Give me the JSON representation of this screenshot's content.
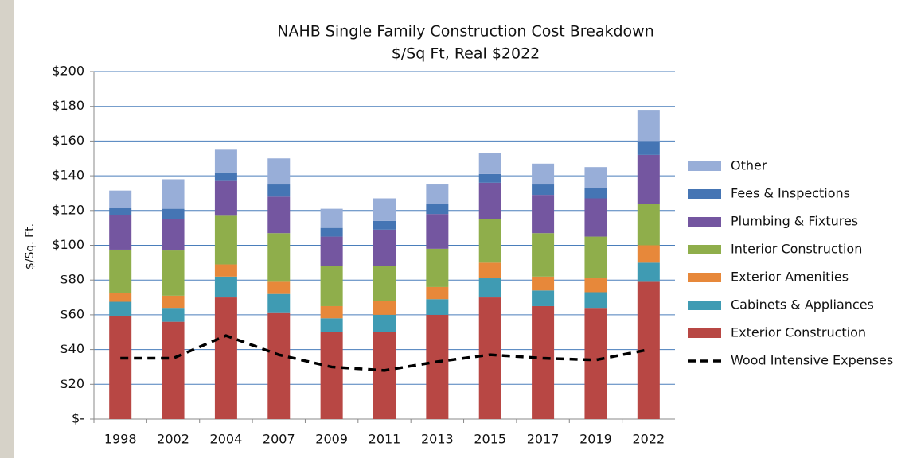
{
  "chart_data": {
    "type": "stacked_bar_line",
    "title": "NAHB Single Family Construction Cost Breakdown",
    "subtitle": "$/Sq Ft, Real $2022",
    "y_label": "$/Sq. Ft.",
    "categories": [
      "1998",
      "2002",
      "2004",
      "2007",
      "2009",
      "2011",
      "2013",
      "2015",
      "2017",
      "2019",
      "2022"
    ],
    "series": [
      {
        "name": "Exterior Construction",
        "color": "#b84744",
        "values": [
          59.5,
          56,
          70,
          61,
          50,
          50,
          60,
          70,
          65,
          64,
          79
        ]
      },
      {
        "name": "Cabinets & Appliances",
        "color": "#3f9bb3",
        "values": [
          8,
          8,
          12,
          11,
          8,
          10,
          9,
          11,
          9,
          9,
          11
        ]
      },
      {
        "name": "Exterior Amenities",
        "color": "#e7883a",
        "values": [
          5,
          7,
          7,
          7,
          7,
          8,
          7,
          9,
          8,
          8,
          10
        ]
      },
      {
        "name": "Interior Construction",
        "color": "#8fae4b",
        "values": [
          25,
          26,
          28,
          28,
          23,
          20,
          22,
          25,
          25,
          24,
          24
        ]
      },
      {
        "name": "Plumbing & Fixtures",
        "color": "#7456a0",
        "values": [
          20,
          18,
          20,
          21,
          17,
          21,
          20,
          21,
          22,
          22,
          28
        ]
      },
      {
        "name": "Fees & Inspections",
        "color": "#4575b4",
        "values": [
          4,
          6,
          5,
          7,
          5,
          5,
          6,
          5,
          6,
          6,
          8
        ]
      },
      {
        "name": "Other",
        "color": "#98aed8",
        "values": [
          10,
          17,
          13,
          15,
          11,
          13,
          11,
          12,
          12,
          12,
          18
        ]
      }
    ],
    "line_series": [
      {
        "name": "Wood Intensive Expenses",
        "color": "#000000",
        "dashed": true,
        "values": [
          35,
          35,
          48,
          37,
          30,
          28,
          33,
          37,
          35,
          34,
          40
        ]
      }
    ],
    "ylim": [
      0,
      200
    ],
    "yticks": [
      {
        "value": 0,
        "label": "$-"
      },
      {
        "value": 20,
        "label": "$20"
      },
      {
        "value": 40,
        "label": "$40"
      },
      {
        "value": 60,
        "label": "$60"
      },
      {
        "value": 80,
        "label": "$80"
      },
      {
        "value": 100,
        "label": "$100"
      },
      {
        "value": 120,
        "label": "$120"
      },
      {
        "value": 140,
        "label": "$140"
      },
      {
        "value": 160,
        "label": "$160"
      },
      {
        "value": 180,
        "label": "$180"
      },
      {
        "value": 200,
        "label": "$200"
      }
    ],
    "grid": true,
    "legend": "right"
  }
}
